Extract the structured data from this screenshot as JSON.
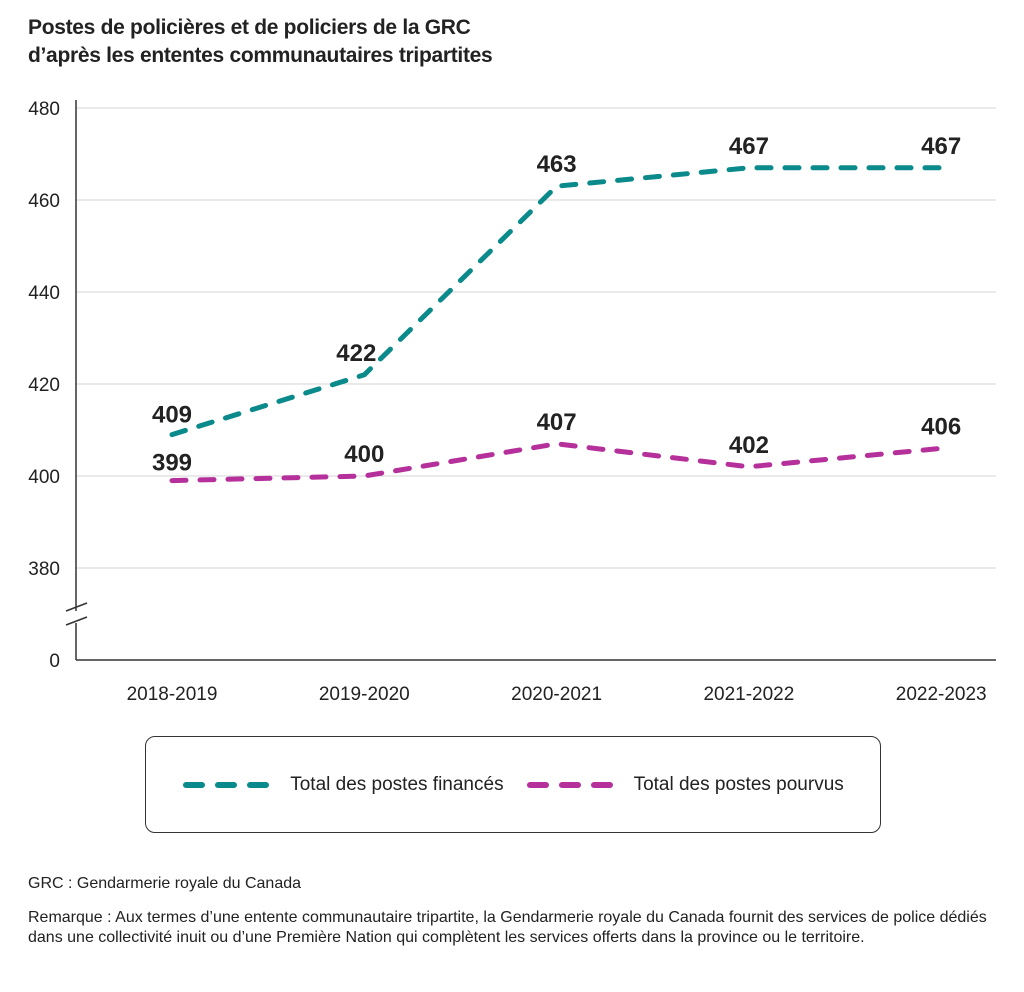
{
  "chart_data": {
    "type": "line",
    "title": "Postes de policières et de policiers de la GRC d’après les ententes communautaires tripartites",
    "title_lines": [
      "Postes de policières et de policiers de la GRC",
      "d’après les ententes communautaires tripartites"
    ],
    "categories": [
      "2018-2019",
      "2019-2020",
      "2020-2021",
      "2021-2022",
      "2022-2023"
    ],
    "series": [
      {
        "name": "Total des postes financés",
        "values": [
          409,
          422,
          463,
          467,
          467
        ],
        "color": "#0a8a8a",
        "style": "dashed"
      },
      {
        "name": "Total des postes pourvus",
        "values": [
          399,
          400,
          407,
          402,
          406
        ],
        "color": "#b5309a",
        "style": "dashed"
      }
    ],
    "yticks": [
      0,
      380,
      400,
      420,
      440,
      460,
      480
    ],
    "ylim": [
      380,
      480
    ],
    "axis_break": "between 0 and 380",
    "grid": true,
    "data_labels": true,
    "legend_placement": "bottom"
  },
  "footnotes": {
    "abbreviation": "GRC : Gendarmerie royale du Canada",
    "note": "Remarque : Aux termes d’une entente communautaire tripartite, la Gendarmerie royale du Canada fournit des services de police dédiés dans une collectivité inuit ou d’une Première Nation qui complètent les services offerts dans la province ou le territoire."
  }
}
